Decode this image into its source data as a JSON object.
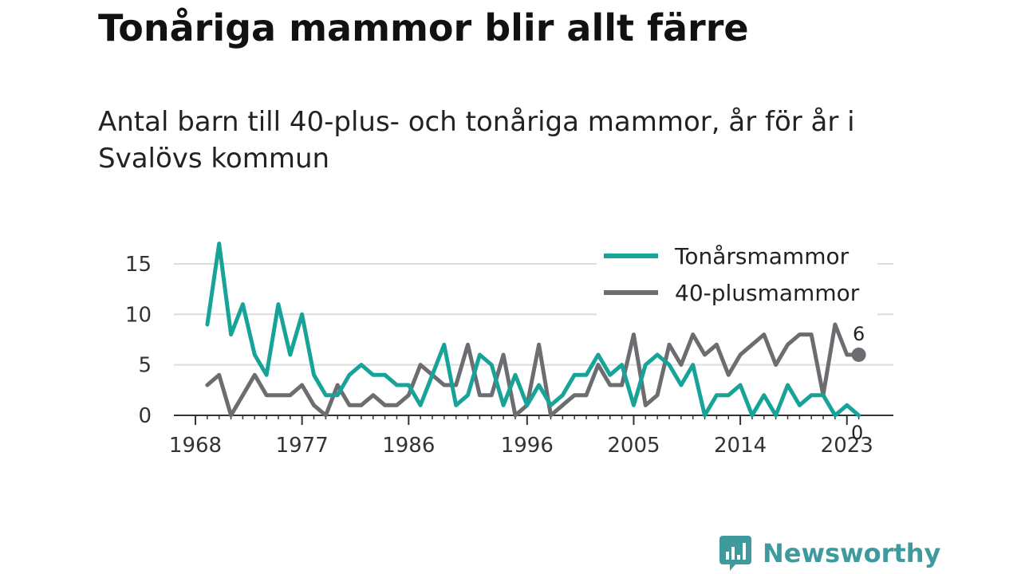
{
  "title": "Tonåriga mammor blir allt färre",
  "subtitle": "Antal barn till 40-plus- och tonåriga mammor, år för år i Svalövs kommun",
  "brand": "Newsworthy",
  "colors": {
    "teen": "#17a398",
    "forty": "#6d6c71",
    "grid": "#dddddd",
    "axis": "#333333",
    "brand": "#3e9a9c"
  },
  "chart_data": {
    "type": "line",
    "x": [
      1969,
      1970,
      1971,
      1972,
      1973,
      1974,
      1975,
      1976,
      1977,
      1978,
      1979,
      1980,
      1981,
      1982,
      1983,
      1984,
      1985,
      1986,
      1987,
      1988,
      1989,
      1990,
      1991,
      1992,
      1993,
      1994,
      1995,
      1996,
      1997,
      1998,
      1999,
      2000,
      2001,
      2002,
      2003,
      2004,
      2005,
      2006,
      2007,
      2008,
      2009,
      2010,
      2011,
      2012,
      2013,
      2014,
      2015,
      2016,
      2017,
      2018,
      2019,
      2020,
      2021,
      2022,
      2023,
      2024
    ],
    "series": [
      {
        "name": "Tonårsmammor",
        "color": "#17a398",
        "values": [
          9,
          17,
          8,
          11,
          6,
          4,
          11,
          6,
          10,
          4,
          2,
          2,
          4,
          5,
          4,
          4,
          3,
          3,
          1,
          4,
          7,
          1,
          2,
          6,
          5,
          1,
          4,
          1,
          3,
          1,
          2,
          4,
          4,
          6,
          4,
          5,
          1,
          5,
          6,
          5,
          3,
          5,
          0,
          2,
          2,
          3,
          0,
          2,
          0,
          3,
          1,
          2,
          2,
          0,
          1,
          0
        ]
      },
      {
        "name": "40-plusmammor",
        "color": "#6d6c71",
        "values": [
          3,
          4,
          0,
          2,
          4,
          2,
          2,
          2,
          3,
          1,
          0,
          3,
          1,
          1,
          2,
          1,
          1,
          2,
          5,
          4,
          3,
          3,
          7,
          2,
          2,
          6,
          0,
          1,
          7,
          0,
          1,
          2,
          2,
          5,
          3,
          3,
          8,
          1,
          2,
          7,
          5,
          8,
          6,
          7,
          4,
          6,
          7,
          8,
          5,
          7,
          8,
          8,
          2,
          9,
          6,
          6
        ]
      }
    ],
    "end_labels": [
      "6",
      "0"
    ],
    "xticks": [
      1968,
      1977,
      1986,
      1996,
      2005,
      2014,
      2023
    ],
    "yticks": [
      0,
      5,
      10,
      15
    ],
    "xlim": [
      1968,
      2027
    ],
    "ylim": [
      0,
      18
    ],
    "legend": "top-right",
    "grid": true
  }
}
